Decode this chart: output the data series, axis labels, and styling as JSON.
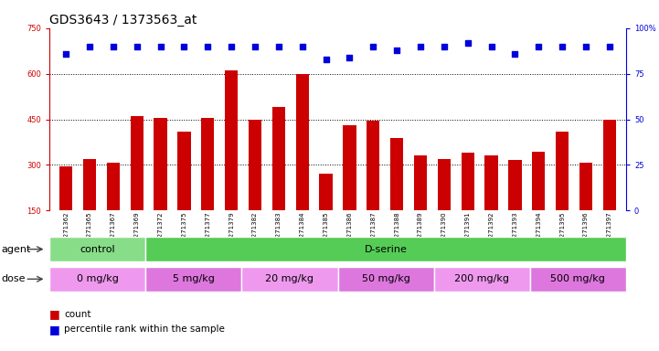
{
  "title": "GDS3643 / 1373563_at",
  "samples": [
    "GSM271362",
    "GSM271365",
    "GSM271367",
    "GSM271369",
    "GSM271372",
    "GSM271375",
    "GSM271377",
    "GSM271379",
    "GSM271382",
    "GSM271383",
    "GSM271384",
    "GSM271385",
    "GSM271386",
    "GSM271387",
    "GSM271388",
    "GSM271389",
    "GSM271390",
    "GSM271391",
    "GSM271392",
    "GSM271393",
    "GSM271394",
    "GSM271395",
    "GSM271396",
    "GSM271397"
  ],
  "counts": [
    295,
    320,
    308,
    460,
    455,
    410,
    455,
    610,
    450,
    490,
    600,
    270,
    430,
    445,
    390,
    330,
    320,
    340,
    330,
    315,
    345,
    410,
    308,
    450
  ],
  "percentiles": [
    86,
    90,
    90,
    90,
    90,
    90,
    90,
    90,
    90,
    90,
    90,
    83,
    84,
    90,
    88,
    90,
    90,
    92,
    90,
    86,
    90,
    90,
    90,
    90
  ],
  "bar_color": "#cc0000",
  "dot_color": "#0000dd",
  "ylim_left": [
    150,
    750
  ],
  "ylim_right": [
    0,
    100
  ],
  "yticks_left": [
    150,
    300,
    450,
    600,
    750
  ],
  "yticks_right": [
    0,
    25,
    50,
    75,
    100
  ],
  "grid_values": [
    300,
    450,
    600
  ],
  "agent_groups": [
    {
      "label": "control",
      "start": 0,
      "end": 4,
      "color": "#88dd88"
    },
    {
      "label": "D-serine",
      "start": 4,
      "end": 24,
      "color": "#55cc55"
    }
  ],
  "dose_groups": [
    {
      "label": "0 mg/kg",
      "start": 0,
      "end": 4,
      "color": "#ee99ee"
    },
    {
      "label": "5 mg/kg",
      "start": 4,
      "end": 8,
      "color": "#dd77dd"
    },
    {
      "label": "20 mg/kg",
      "start": 8,
      "end": 12,
      "color": "#ee99ee"
    },
    {
      "label": "50 mg/kg",
      "start": 12,
      "end": 16,
      "color": "#dd77dd"
    },
    {
      "label": "200 mg/kg",
      "start": 16,
      "end": 20,
      "color": "#ee99ee"
    },
    {
      "label": "500 mg/kg",
      "start": 20,
      "end": 24,
      "color": "#dd77dd"
    }
  ],
  "background_color": "#ffffff",
  "plot_bg_color": "#ffffff",
  "title_fontsize": 10,
  "tick_fontsize": 6,
  "bar_label_fontsize": 7,
  "annotation_fontsize": 8,
  "legend_fontsize": 7.5,
  "bar_width": 0.55
}
